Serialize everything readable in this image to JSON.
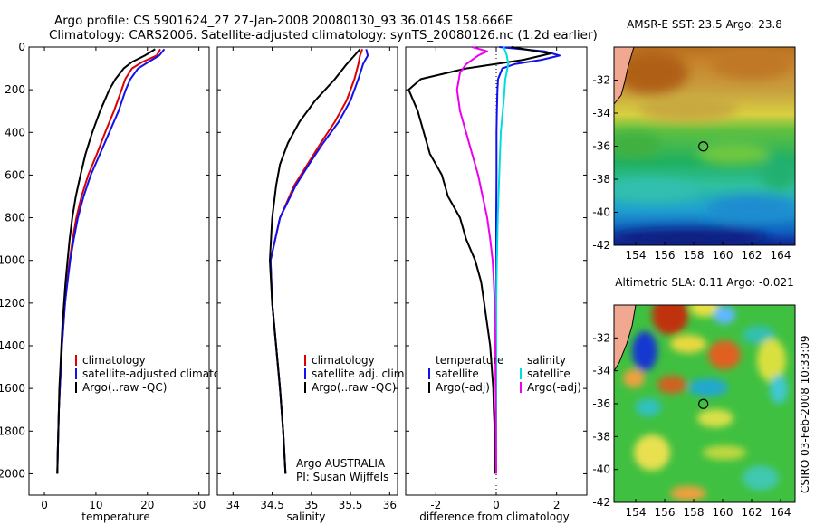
{
  "header": {
    "line1": "Argo profile: CS 5901624_27 27-Jan-2008 20080130_93 36.014S 158.666E",
    "line2": "Climatology: CARS2006. Satellite-adjusted climatology: synTS_20080126.nc (1.2d earlier)"
  },
  "side_note": "CSIRO 03-Feb-2008 10:33:09",
  "credit": {
    "line1": "Argo AUSTRALIA",
    "line2": "PI: Susan Wijffels"
  },
  "colors": {
    "climatology": "#dd0000",
    "satellite": "#1111ee",
    "argo": "#000000",
    "cyan": "#00dddd",
    "magenta": "#ee00ee"
  },
  "chart_data": [
    {
      "type": "line",
      "panel": "temperature",
      "xlabel": "temperature",
      "xlim": [
        -3,
        32
      ],
      "ylim": [
        2100,
        0
      ],
      "xticks": [
        0,
        10,
        20,
        30
      ],
      "yticks": [
        0,
        200,
        400,
        600,
        800,
        1000,
        1200,
        1400,
        1600,
        1800,
        2000
      ],
      "legend": {
        "placement": "bottom-right",
        "entries": [
          "climatology",
          "satellite-adjusted climatology",
          "Argo(..raw -QC)"
        ]
      },
      "series": [
        {
          "name": "climatology",
          "color": "climatology",
          "depth": [
            10,
            40,
            70,
            100,
            150,
            200,
            300,
            400,
            500,
            600,
            700,
            800,
            900,
            1000,
            1100,
            1200,
            1300,
            1400,
            1500,
            1600,
            1700,
            1800,
            1900,
            2000
          ],
          "values": [
            22.5,
            21.8,
            19.0,
            17.0,
            15.7,
            15.0,
            13.5,
            11.8,
            10.2,
            8.5,
            7.2,
            6.2,
            5.5,
            4.9,
            4.4,
            4.0,
            3.7,
            3.4,
            3.2,
            3.0,
            2.8,
            2.7,
            2.6,
            2.5
          ]
        },
        {
          "name": "satellite-adjusted climatology",
          "color": "satellite",
          "depth": [
            10,
            40,
            70,
            100,
            150,
            200,
            300,
            400,
            500,
            600,
            700,
            800,
            900,
            1000,
            1100,
            1200,
            1300,
            1400,
            1500,
            1600,
            1700,
            1800,
            1900,
            2000
          ],
          "values": [
            23.3,
            22.3,
            20.2,
            18.2,
            16.7,
            15.8,
            14.4,
            12.6,
            10.8,
            9.0,
            7.6,
            6.5,
            5.7,
            5.0,
            4.5,
            4.0,
            3.7,
            3.4,
            3.2,
            3.0,
            2.8,
            2.7,
            2.6,
            2.5
          ]
        },
        {
          "name": "Argo(..raw -QC)",
          "color": "argo",
          "depth": [
            10,
            40,
            70,
            100,
            150,
            200,
            300,
            400,
            500,
            600,
            700,
            800,
            900,
            1000,
            1100,
            1200,
            1300,
            1400,
            1500,
            1600,
            1700,
            1800,
            1900,
            2000
          ],
          "values": [
            21.5,
            19.5,
            17.0,
            15.4,
            13.8,
            12.6,
            10.8,
            9.3,
            8.0,
            7.0,
            6.1,
            5.4,
            4.9,
            4.5,
            4.1,
            3.8,
            3.5,
            3.3,
            3.1,
            2.9,
            2.8,
            2.7,
            2.6,
            2.5
          ]
        }
      ]
    },
    {
      "type": "line",
      "panel": "salinity",
      "xlabel": "salinity",
      "xlim": [
        33.8,
        36.1
      ],
      "ylim": [
        2100,
        0
      ],
      "xticks": [
        34,
        34.5,
        35,
        35.5,
        36
      ],
      "legend": {
        "placement": "bottom-right",
        "entries": [
          "climatology",
          "satellite adj. clim.",
          "Argo(..raw -QC)"
        ]
      },
      "series": [
        {
          "name": "climatology",
          "color": "climatology",
          "depth": [
            10,
            40,
            80,
            150,
            250,
            350,
            450,
            550,
            650,
            800,
            1000,
            1200,
            1400,
            1600,
            1800,
            2000
          ],
          "values": [
            35.65,
            35.62,
            35.6,
            35.55,
            35.45,
            35.3,
            35.12,
            34.95,
            34.78,
            34.6,
            34.48,
            34.5,
            34.55,
            34.6,
            34.64,
            34.67
          ]
        },
        {
          "name": "satellite adj. clim.",
          "color": "satellite",
          "depth": [
            10,
            40,
            80,
            150,
            250,
            350,
            450,
            550,
            650,
            800,
            1000,
            1200,
            1400,
            1600,
            1800,
            2000
          ],
          "values": [
            35.7,
            35.72,
            35.66,
            35.6,
            35.5,
            35.35,
            35.15,
            34.97,
            34.8,
            34.6,
            34.48,
            34.5,
            34.55,
            34.6,
            34.64,
            34.67
          ]
        },
        {
          "name": "Argo(..raw -QC)",
          "color": "argo",
          "depth": [
            10,
            40,
            80,
            150,
            250,
            350,
            450,
            550,
            650,
            800,
            1000,
            1200,
            1400,
            1600,
            1800,
            2000
          ],
          "values": [
            35.62,
            35.55,
            35.45,
            35.3,
            35.05,
            34.85,
            34.7,
            34.6,
            34.55,
            34.5,
            34.47,
            34.5,
            34.55,
            34.6,
            34.64,
            34.67
          ]
        }
      ]
    },
    {
      "type": "line",
      "panel": "difference",
      "xlabel": "difference from climatology",
      "xlim": [
        -3,
        3
      ],
      "ylim": [
        2100,
        0
      ],
      "xticks": [
        -2,
        0,
        2
      ],
      "legend": {
        "placement": "bottom",
        "columns": [
          {
            "header": "temperature",
            "entries": [
              "satellite",
              "Argo(-adj)"
            ]
          },
          {
            "header": "salinity",
            "entries": [
              "satellite",
              "Argo(-adj)"
            ]
          }
        ]
      },
      "series": [
        {
          "name": "temperature satellite",
          "color": "satellite",
          "depth": [
            0,
            20,
            40,
            60,
            80,
            100,
            150,
            200,
            300,
            400,
            600,
            800,
            1000,
            1200,
            1600,
            2000
          ],
          "values": [
            0.1,
            1.6,
            2.1,
            1.5,
            0.6,
            0.2,
            0.06,
            0.04,
            0.02,
            0.01,
            0.01,
            0.0,
            0.0,
            0.0,
            0.0,
            0.0
          ]
        },
        {
          "name": "temperature Argo(-adj)",
          "color": "argo",
          "depth": [
            0,
            30,
            60,
            100,
            150,
            200,
            300,
            400,
            500,
            600,
            700,
            800,
            900,
            1000,
            1100,
            1200,
            1300,
            1400,
            1500,
            1600,
            1700,
            1800,
            2000
          ],
          "values": [
            0.5,
            1.8,
            0.9,
            -1.0,
            -2.5,
            -2.9,
            -2.6,
            -2.4,
            -2.2,
            -1.8,
            -1.6,
            -1.2,
            -1.0,
            -0.7,
            -0.5,
            -0.4,
            -0.3,
            -0.2,
            -0.15,
            -0.1,
            -0.08,
            -0.05,
            -0.03
          ]
        },
        {
          "name": "salinity satellite",
          "color": "cyan",
          "depth": [
            0,
            20,
            40,
            80,
            150,
            250,
            400,
            600,
            800,
            1000,
            1200,
            1400,
            1600,
            1800,
            2000
          ],
          "values": [
            0.25,
            0.3,
            0.35,
            0.4,
            0.3,
            0.25,
            0.15,
            0.1,
            0.05,
            0.02,
            0.0,
            0.0,
            0.0,
            0.0,
            0.0
          ]
        },
        {
          "name": "salinity Argo(-adj)",
          "color": "magenta",
          "depth": [
            0,
            20,
            40,
            80,
            120,
            200,
            300,
            400,
            500,
            600,
            700,
            800,
            900,
            1000,
            1100,
            1200,
            1400,
            1600,
            1800,
            2000
          ],
          "values": [
            -0.8,
            -0.3,
            -0.6,
            -1.0,
            -1.2,
            -1.3,
            -1.2,
            -1.0,
            -0.8,
            -0.6,
            -0.45,
            -0.3,
            -0.2,
            -0.12,
            -0.08,
            -0.05,
            -0.03,
            -0.02,
            -0.01,
            0.0
          ]
        }
      ]
    },
    {
      "type": "heatmap",
      "panel": "sst-map",
      "title": "AMSR-E SST: 23.5 Argo: 23.8",
      "xlim": [
        152.5,
        165
      ],
      "ylim": [
        -42,
        -30
      ],
      "xticks": [
        154,
        156,
        158,
        160,
        162,
        164
      ],
      "yticks": [
        -32,
        -34,
        -36,
        -38,
        -40,
        -42
      ],
      "marker": {
        "lon": 158.666,
        "lat": -36.014
      }
    },
    {
      "type": "heatmap",
      "panel": "sla-map",
      "title": "Altimetric SLA: 0.11 Argo: -0.021",
      "xlim": [
        152.5,
        165
      ],
      "ylim": [
        -42,
        -30
      ],
      "xticks": [
        154,
        156,
        158,
        160,
        162,
        164
      ],
      "yticks": [
        -32,
        -34,
        -36,
        -38,
        -40,
        -42
      ],
      "marker": {
        "lon": 158.666,
        "lat": -36.014
      }
    }
  ]
}
